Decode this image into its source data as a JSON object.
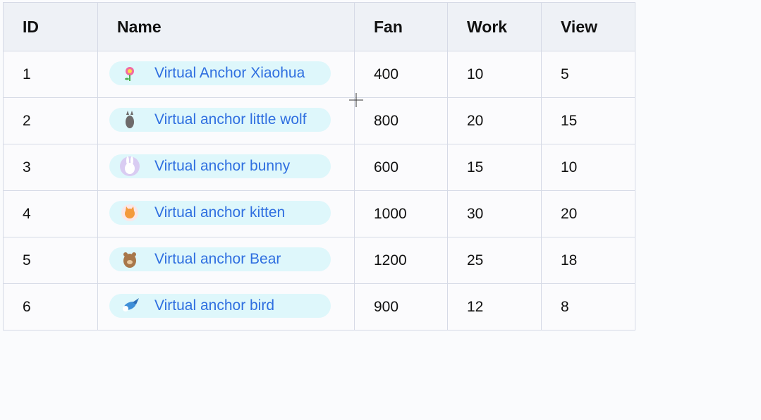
{
  "table": {
    "header": [
      "ID",
      "Name",
      "Fan",
      "Work",
      "View"
    ],
    "rows": [
      [
        "1",
        "Virtual Anchor Xiaohua",
        "400",
        "10",
        "5"
      ],
      [
        "2",
        "Virtual anchor little wolf",
        "800",
        "20",
        "15"
      ],
      [
        "3",
        "Virtual anchor bunny",
        "600",
        "15",
        "10"
      ],
      [
        "4",
        "Virtual anchor kitten",
        "1000",
        "30",
        "20"
      ],
      [
        "5",
        "Virtual anchor Bear",
        "1200",
        "25",
        "18"
      ],
      [
        "6",
        "Virtual anchor bird",
        "900",
        "12",
        "8"
      ]
    ]
  }
}
